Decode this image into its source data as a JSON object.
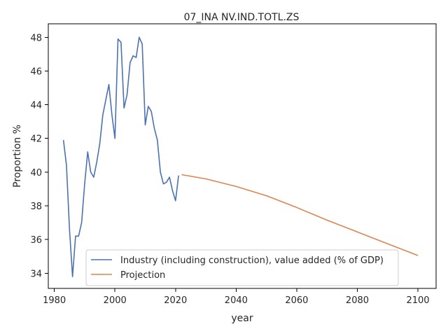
{
  "chart_data": {
    "type": "line",
    "title": "07_INA NV.IND.TOTL.ZS",
    "xlabel": "year",
    "ylabel": "Proportion %",
    "xlim": [
      1978,
      2106
    ],
    "ylim": [
      33.1,
      48.8
    ],
    "x_ticks": [
      1980,
      2000,
      2020,
      2040,
      2060,
      2080,
      2100
    ],
    "y_ticks": [
      34,
      36,
      38,
      40,
      42,
      44,
      46,
      48
    ],
    "grid": false,
    "legend_position": "lower-center",
    "series": [
      {
        "name": "Industry (including construction), value added (% of GDP)",
        "color": "#4c72b0",
        "points": [
          [
            1983,
            41.9
          ],
          [
            1984,
            40.4
          ],
          [
            1985,
            36.6
          ],
          [
            1986,
            33.8
          ],
          [
            1987,
            36.2
          ],
          [
            1988,
            36.2
          ],
          [
            1989,
            37.0
          ],
          [
            1990,
            39.3
          ],
          [
            1991,
            41.2
          ],
          [
            1992,
            40.0
          ],
          [
            1993,
            39.7
          ],
          [
            1994,
            40.6
          ],
          [
            1995,
            41.7
          ],
          [
            1996,
            43.4
          ],
          [
            1997,
            44.3
          ],
          [
            1998,
            45.2
          ],
          [
            1999,
            43.4
          ],
          [
            2000,
            42.0
          ],
          [
            2001,
            47.9
          ],
          [
            2002,
            47.7
          ],
          [
            2003,
            43.8
          ],
          [
            2004,
            44.6
          ],
          [
            2005,
            46.5
          ],
          [
            2006,
            46.9
          ],
          [
            2007,
            46.8
          ],
          [
            2008,
            48.0
          ],
          [
            2009,
            47.6
          ],
          [
            2010,
            42.8
          ],
          [
            2011,
            43.9
          ],
          [
            2012,
            43.6
          ],
          [
            2013,
            42.6
          ],
          [
            2014,
            41.9
          ],
          [
            2015,
            40.0
          ],
          [
            2016,
            39.3
          ],
          [
            2017,
            39.4
          ],
          [
            2018,
            39.7
          ],
          [
            2019,
            38.9
          ],
          [
            2020,
            38.3
          ],
          [
            2021,
            39.8
          ]
        ]
      },
      {
        "name": "Projection",
        "color": "#dd8452",
        "points": [
          [
            2022,
            39.85
          ],
          [
            2030,
            39.6
          ],
          [
            2040,
            39.15
          ],
          [
            2050,
            38.6
          ],
          [
            2060,
            37.9
          ],
          [
            2070,
            37.15
          ],
          [
            2080,
            36.45
          ],
          [
            2090,
            35.75
          ],
          [
            2100,
            35.05
          ]
        ]
      }
    ]
  }
}
